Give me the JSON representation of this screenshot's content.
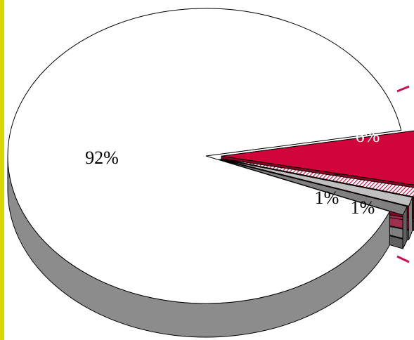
{
  "colors": {
    "left_bar": "#d8d800",
    "accent_tick": "#c8104a"
  },
  "chart_data": {
    "type": "pie",
    "style": "3d-exploded",
    "title": "",
    "start_angle_deg": 10,
    "direction": "clockwise",
    "slices": [
      {
        "value": 6,
        "label": "6%",
        "fill": "#d0063a",
        "side": "#8a0022",
        "pattern": "solid",
        "label_color": "#ffffff",
        "exploded": true
      },
      {
        "value": 1,
        "label": "",
        "fill": "#e05070",
        "side": "#a03050",
        "pattern": "hatch",
        "exploded": true
      },
      {
        "value": 1,
        "label": "1%",
        "fill": "#c0c0c0",
        "side": "#808080",
        "pattern": "solid",
        "exploded": true
      },
      {
        "value": 1,
        "label": "1%",
        "fill": "#808080",
        "side": "#606060",
        "pattern": "solid",
        "exploded": true
      },
      {
        "value": 92,
        "label": "92%",
        "fill": "#ffffff",
        "side": "#8c8c8c",
        "pattern": "solid",
        "exploded": false
      }
    ]
  }
}
